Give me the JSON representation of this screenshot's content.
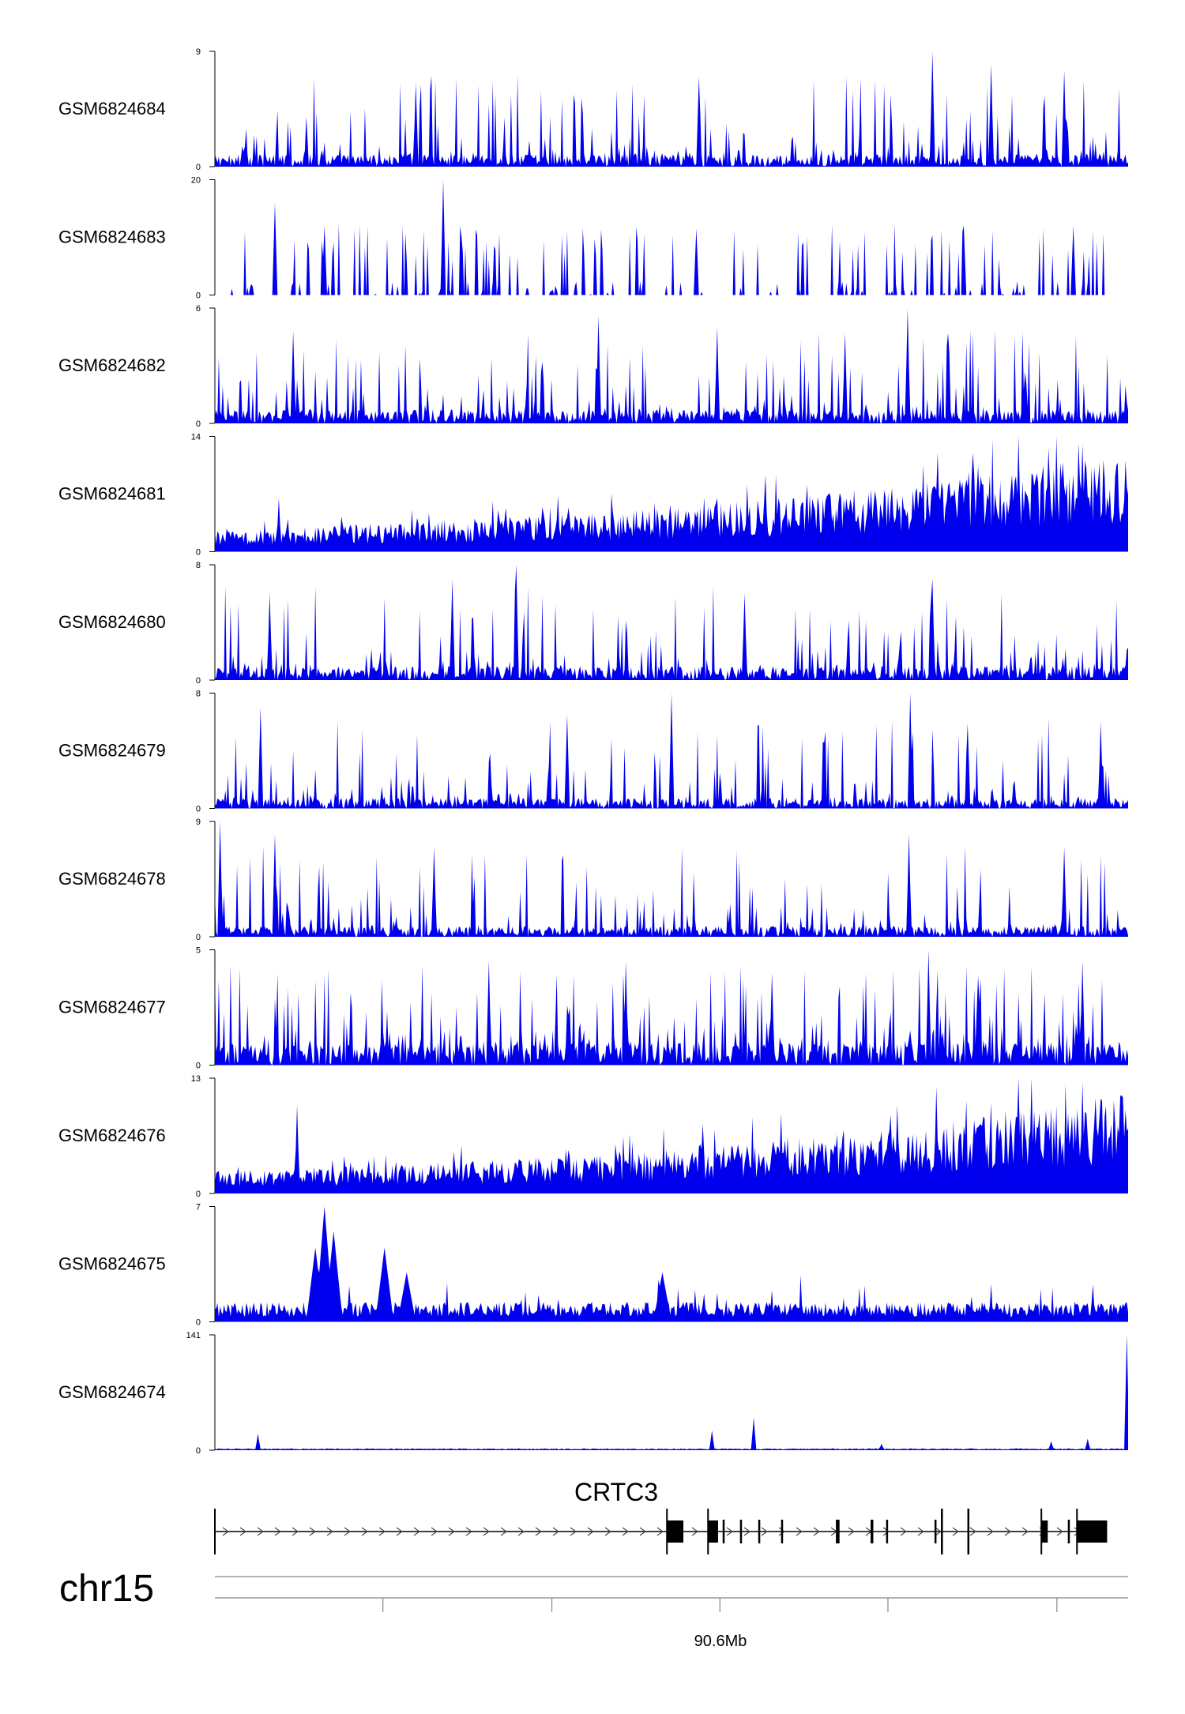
{
  "colors": {
    "signal": "#0000ee",
    "axis": "#000000",
    "gene": "#000000",
    "scale_line": "#888888"
  },
  "chart_data": {
    "type": "area",
    "xlabel": "",
    "chromosome": "chr15",
    "x_tick_label": "90.6Mb",
    "gene": {
      "name": "CRTC3",
      "strand": "+"
    },
    "grid": false,
    "tracks": [
      {
        "name": "GSM6824684",
        "ymin": "0",
        "ymax": "9",
        "ylim": [
          0,
          9
        ],
        "pattern": "spiky",
        "baseline": 0.8,
        "spikes": [
          [
            0.785,
            9.0
          ],
          [
            0.53,
            7.0
          ],
          [
            0.85,
            8.0
          ],
          [
            0.22,
            6.5
          ],
          [
            0.93,
            7.5
          ]
        ]
      },
      {
        "name": "GSM6824683",
        "ymin": "0",
        "ymax": "20",
        "ylim": [
          0,
          20
        ],
        "pattern": "sparse",
        "baseline": 0.0,
        "end": 0.98,
        "spikes": [
          [
            0.25,
            20.0
          ],
          [
            0.066,
            16.0
          ],
          [
            0.527,
            11.5
          ],
          [
            0.94,
            12.0
          ],
          [
            0.12,
            12.0
          ],
          [
            0.82,
            12.0
          ]
        ]
      },
      {
        "name": "GSM6824682",
        "ymin": "0",
        "ymax": "6",
        "ylim": [
          0,
          6
        ],
        "pattern": "spiky",
        "baseline": 0.6,
        "spikes": [
          [
            0.758,
            6.0
          ],
          [
            0.42,
            5.6
          ],
          [
            0.085,
            4.8
          ],
          [
            0.55,
            5.0
          ],
          [
            0.69,
            4.7
          ]
        ]
      },
      {
        "name": "GSM6824681",
        "ymin": "0",
        "ymax": "14",
        "ylim": [
          0,
          14
        ],
        "pattern": "rising",
        "baseline": 1.8,
        "spikes": [
          [
            0.88,
            14.0
          ],
          [
            0.95,
            13.0
          ],
          [
            0.83,
            12.0
          ],
          [
            0.07,
            6.5
          ],
          [
            0.55,
            6.5
          ],
          [
            0.7,
            7.5
          ]
        ]
      },
      {
        "name": "GSM6824680",
        "ymin": "0",
        "ymax": "8",
        "ylim": [
          0,
          8
        ],
        "pattern": "spiky",
        "baseline": 0.8,
        "spikes": [
          [
            0.33,
            8.0
          ],
          [
            0.06,
            6.0
          ],
          [
            0.26,
            7.0
          ],
          [
            0.785,
            7.0
          ],
          [
            0.58,
            6.0
          ]
        ]
      },
      {
        "name": "GSM6824679",
        "ymin": "0",
        "ymax": "8",
        "ylim": [
          0,
          8
        ],
        "pattern": "spiky",
        "baseline": 0.6,
        "spikes": [
          [
            0.5,
            8.0
          ],
          [
            0.762,
            8.0
          ],
          [
            0.05,
            7.0
          ],
          [
            0.385,
            6.5
          ],
          [
            0.97,
            6.0
          ]
        ]
      },
      {
        "name": "GSM6824678",
        "ymin": "0",
        "ymax": "9",
        "ylim": [
          0,
          9
        ],
        "pattern": "spiky",
        "baseline": 0.7,
        "spikes": [
          [
            0.006,
            9.0
          ],
          [
            0.065,
            8.0
          ],
          [
            0.76,
            8.0
          ],
          [
            0.93,
            7.0
          ],
          [
            0.24,
            7.0
          ]
        ]
      },
      {
        "name": "GSM6824677",
        "ymin": "0",
        "ymax": "5",
        "ylim": [
          0,
          5
        ],
        "pattern": "dense",
        "baseline": 0.8,
        "spikes": [
          [
            0.781,
            5.0
          ],
          [
            0.3,
            4.5
          ],
          [
            0.45,
            4.5
          ],
          [
            0.95,
            4.5
          ],
          [
            0.61,
            4.0
          ]
        ]
      },
      {
        "name": "GSM6824676",
        "ymin": "0",
        "ymax": "13",
        "ylim": [
          0,
          13
        ],
        "pattern": "rising",
        "baseline": 1.5,
        "spikes": [
          [
            0.88,
            13.0
          ],
          [
            0.95,
            12.5
          ],
          [
            0.79,
            12.0
          ],
          [
            0.09,
            10.0
          ],
          [
            0.62,
            9.0
          ]
        ]
      },
      {
        "name": "GSM6824675",
        "ymin": "0",
        "ymax": "7",
        "ylim": [
          0,
          7
        ],
        "pattern": "peaks",
        "baseline": 0.3,
        "spikes": [
          [
            0.12,
            7.0
          ],
          [
            0.185,
            4.5
          ],
          [
            0.21,
            3.0
          ],
          [
            0.49,
            3.0
          ],
          [
            0.13,
            5.5
          ],
          [
            0.11,
            4.5
          ]
        ]
      },
      {
        "name": "GSM6824674",
        "ymin": "0",
        "ymax": "141",
        "ylim": [
          0,
          141
        ],
        "pattern": "flat",
        "baseline": 1.0,
        "spikes": [
          [
            0.999,
            141.0
          ],
          [
            0.59,
            40.0
          ],
          [
            0.544,
            24.0
          ],
          [
            0.047,
            20.0
          ],
          [
            0.955,
            14.0
          ],
          [
            0.915,
            11.0
          ],
          [
            0.73,
            8.0
          ]
        ]
      }
    ],
    "exons": [
      {
        "start": 0.495,
        "end": 0.513,
        "tall": true
      },
      {
        "start": 0.54,
        "end": 0.551,
        "tall": true
      },
      {
        "start": 0.556,
        "end": 0.558,
        "tall": false
      },
      {
        "start": 0.575,
        "end": 0.577,
        "tall": false
      },
      {
        "start": 0.595,
        "end": 0.597,
        "tall": false
      },
      {
        "start": 0.62,
        "end": 0.622,
        "tall": false
      },
      {
        "start": 0.68,
        "end": 0.684,
        "tall": false
      },
      {
        "start": 0.718,
        "end": 0.721,
        "tall": false
      },
      {
        "start": 0.735,
        "end": 0.737,
        "tall": false
      },
      {
        "start": 0.788,
        "end": 0.79,
        "tall": false
      },
      {
        "start": 0.795,
        "end": 0.797,
        "tall": true
      },
      {
        "start": 0.824,
        "end": 0.826,
        "tall": true
      },
      {
        "start": 0.905,
        "end": 0.912,
        "tall": true
      },
      {
        "start": 0.934,
        "end": 0.936,
        "tall": false
      },
      {
        "start": 0.944,
        "end": 0.977,
        "tall": true
      }
    ]
  }
}
